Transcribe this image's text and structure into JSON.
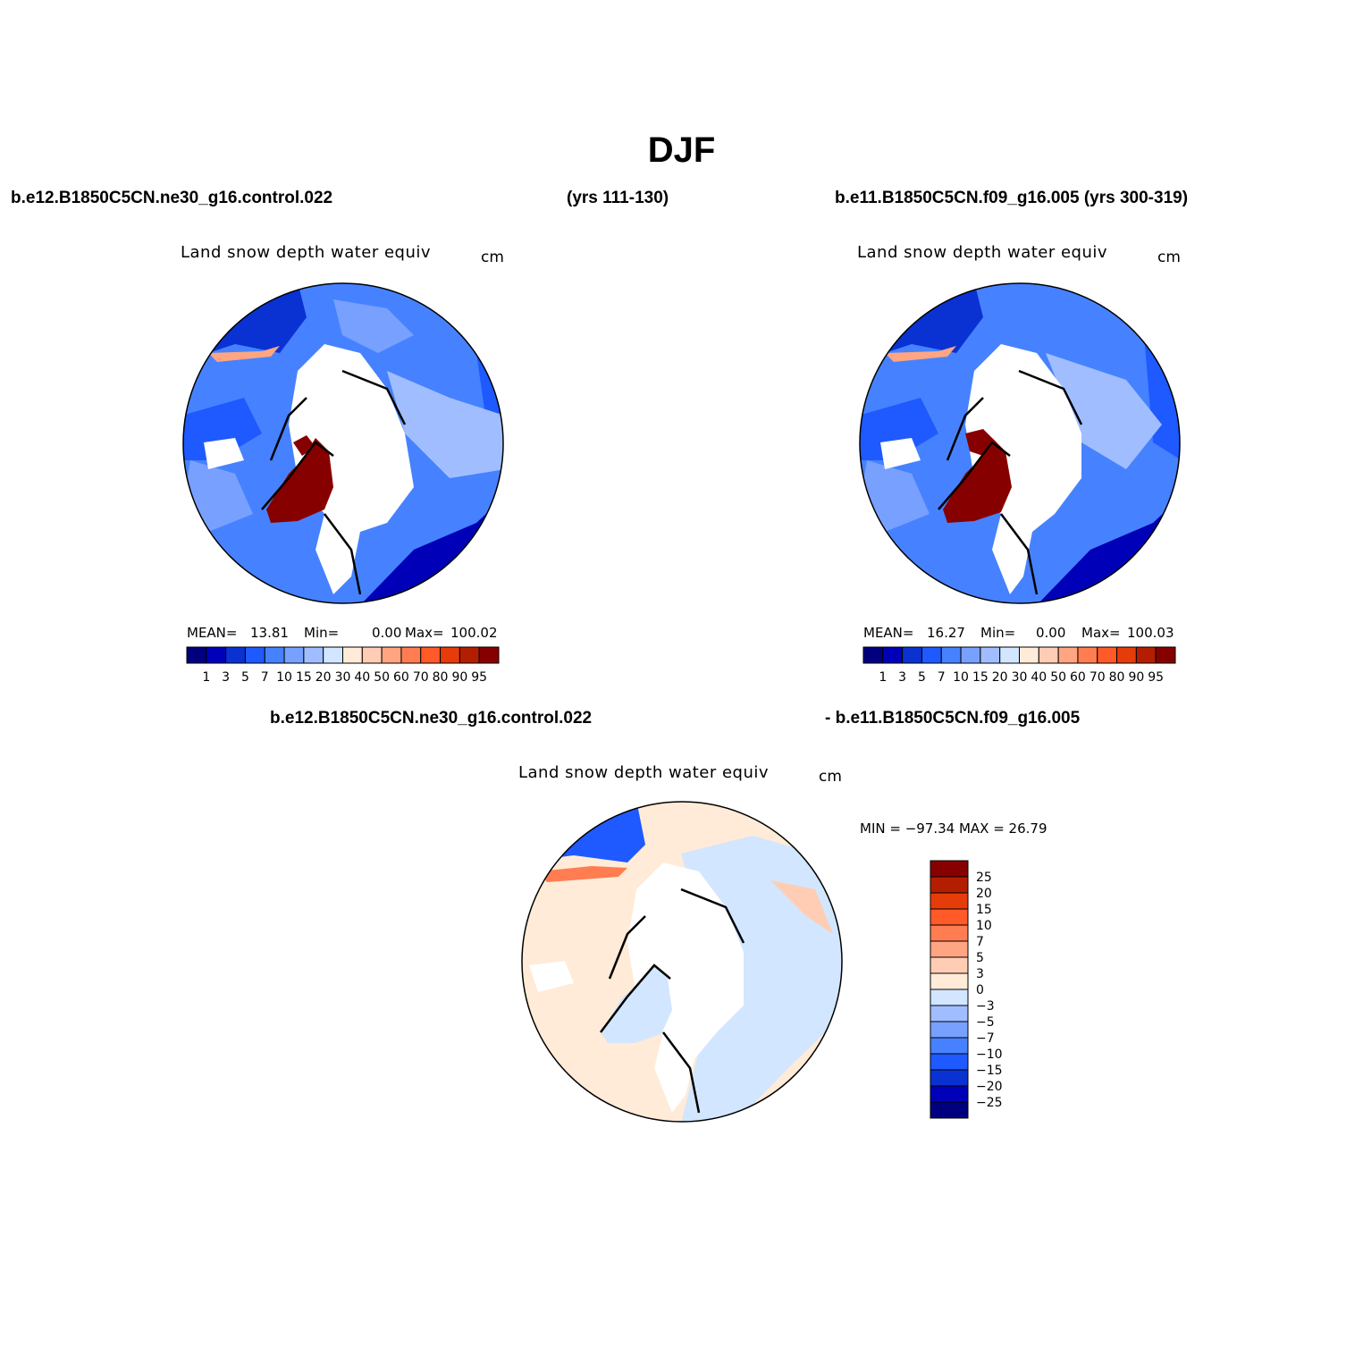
{
  "figure": {
    "title": "DJF",
    "case1_label": "b.e12.B1850C5CN.ne30_g16.control.022",
    "case1_years": "(yrs 111-130)",
    "case2_label": "b.e11.B1850C5CN.f09_g16.005 (yrs 300-319)",
    "diff_label_left": "b.e12.B1850C5CN.ne30_g16.control.022",
    "diff_label_right": "- b.e11.B1850C5CN.f09_g16.005"
  },
  "panels": [
    {
      "title": "Land snow depth water equiv",
      "units": "cm",
      "mean_label": "MEAN=",
      "mean": "13.81",
      "min_label": "Min=",
      "min": "0.00",
      "max_label": "Max=",
      "max": "100.02"
    },
    {
      "title": "Land snow depth water equiv",
      "units": "cm",
      "mean_label": "MEAN=",
      "mean": "16.27",
      "min_label": "Min=",
      "min": "0.00",
      "max_label": "Max=",
      "max": "100.03"
    },
    {
      "title": "Land snow depth water equiv",
      "units": "cm",
      "minmax_text": "MIN = −97.34 MAX =   26.79"
    }
  ],
  "colorbar_abs": {
    "colors": [
      "#00007f",
      "#0000b8",
      "#0a32d2",
      "#1e5aff",
      "#4682ff",
      "#78a0ff",
      "#a0beff",
      "#d2e6ff",
      "#ffebd7",
      "#ffcdb4",
      "#ffa582",
      "#ff7d50",
      "#ff5a28",
      "#e63c0a",
      "#b41e00",
      "#870000"
    ],
    "labels": [
      "1",
      "3",
      "5",
      "7",
      "10",
      "15",
      "20",
      "30",
      "40",
      "50",
      "60",
      "70",
      "80",
      "90",
      "95"
    ]
  },
  "colorbar_diff": {
    "colors": [
      "#870000",
      "#b41e00",
      "#e63c0a",
      "#ff5a28",
      "#ff7d50",
      "#ffa582",
      "#ffcdb4",
      "#ffebd7",
      "#d2e6ff",
      "#a0beff",
      "#78a0ff",
      "#4682ff",
      "#1e5aff",
      "#0a32d2",
      "#0000b8",
      "#00007f"
    ],
    "labels": [
      "25",
      "20",
      "15",
      "10",
      "7",
      "5",
      "3",
      "0",
      "−3",
      "−5",
      "−7",
      "−10",
      "−15",
      "−20",
      "−25"
    ]
  },
  "map_colors": {
    "deep_blue": "#0a32d2",
    "mid_blue": "#4682ff",
    "light_blue": "#a0beff",
    "pale_blue": "#d2e6ff",
    "peach": "#ffebd7",
    "salmon": "#ffa582",
    "dark_red": "#870000",
    "orange": "#ff7d50"
  }
}
